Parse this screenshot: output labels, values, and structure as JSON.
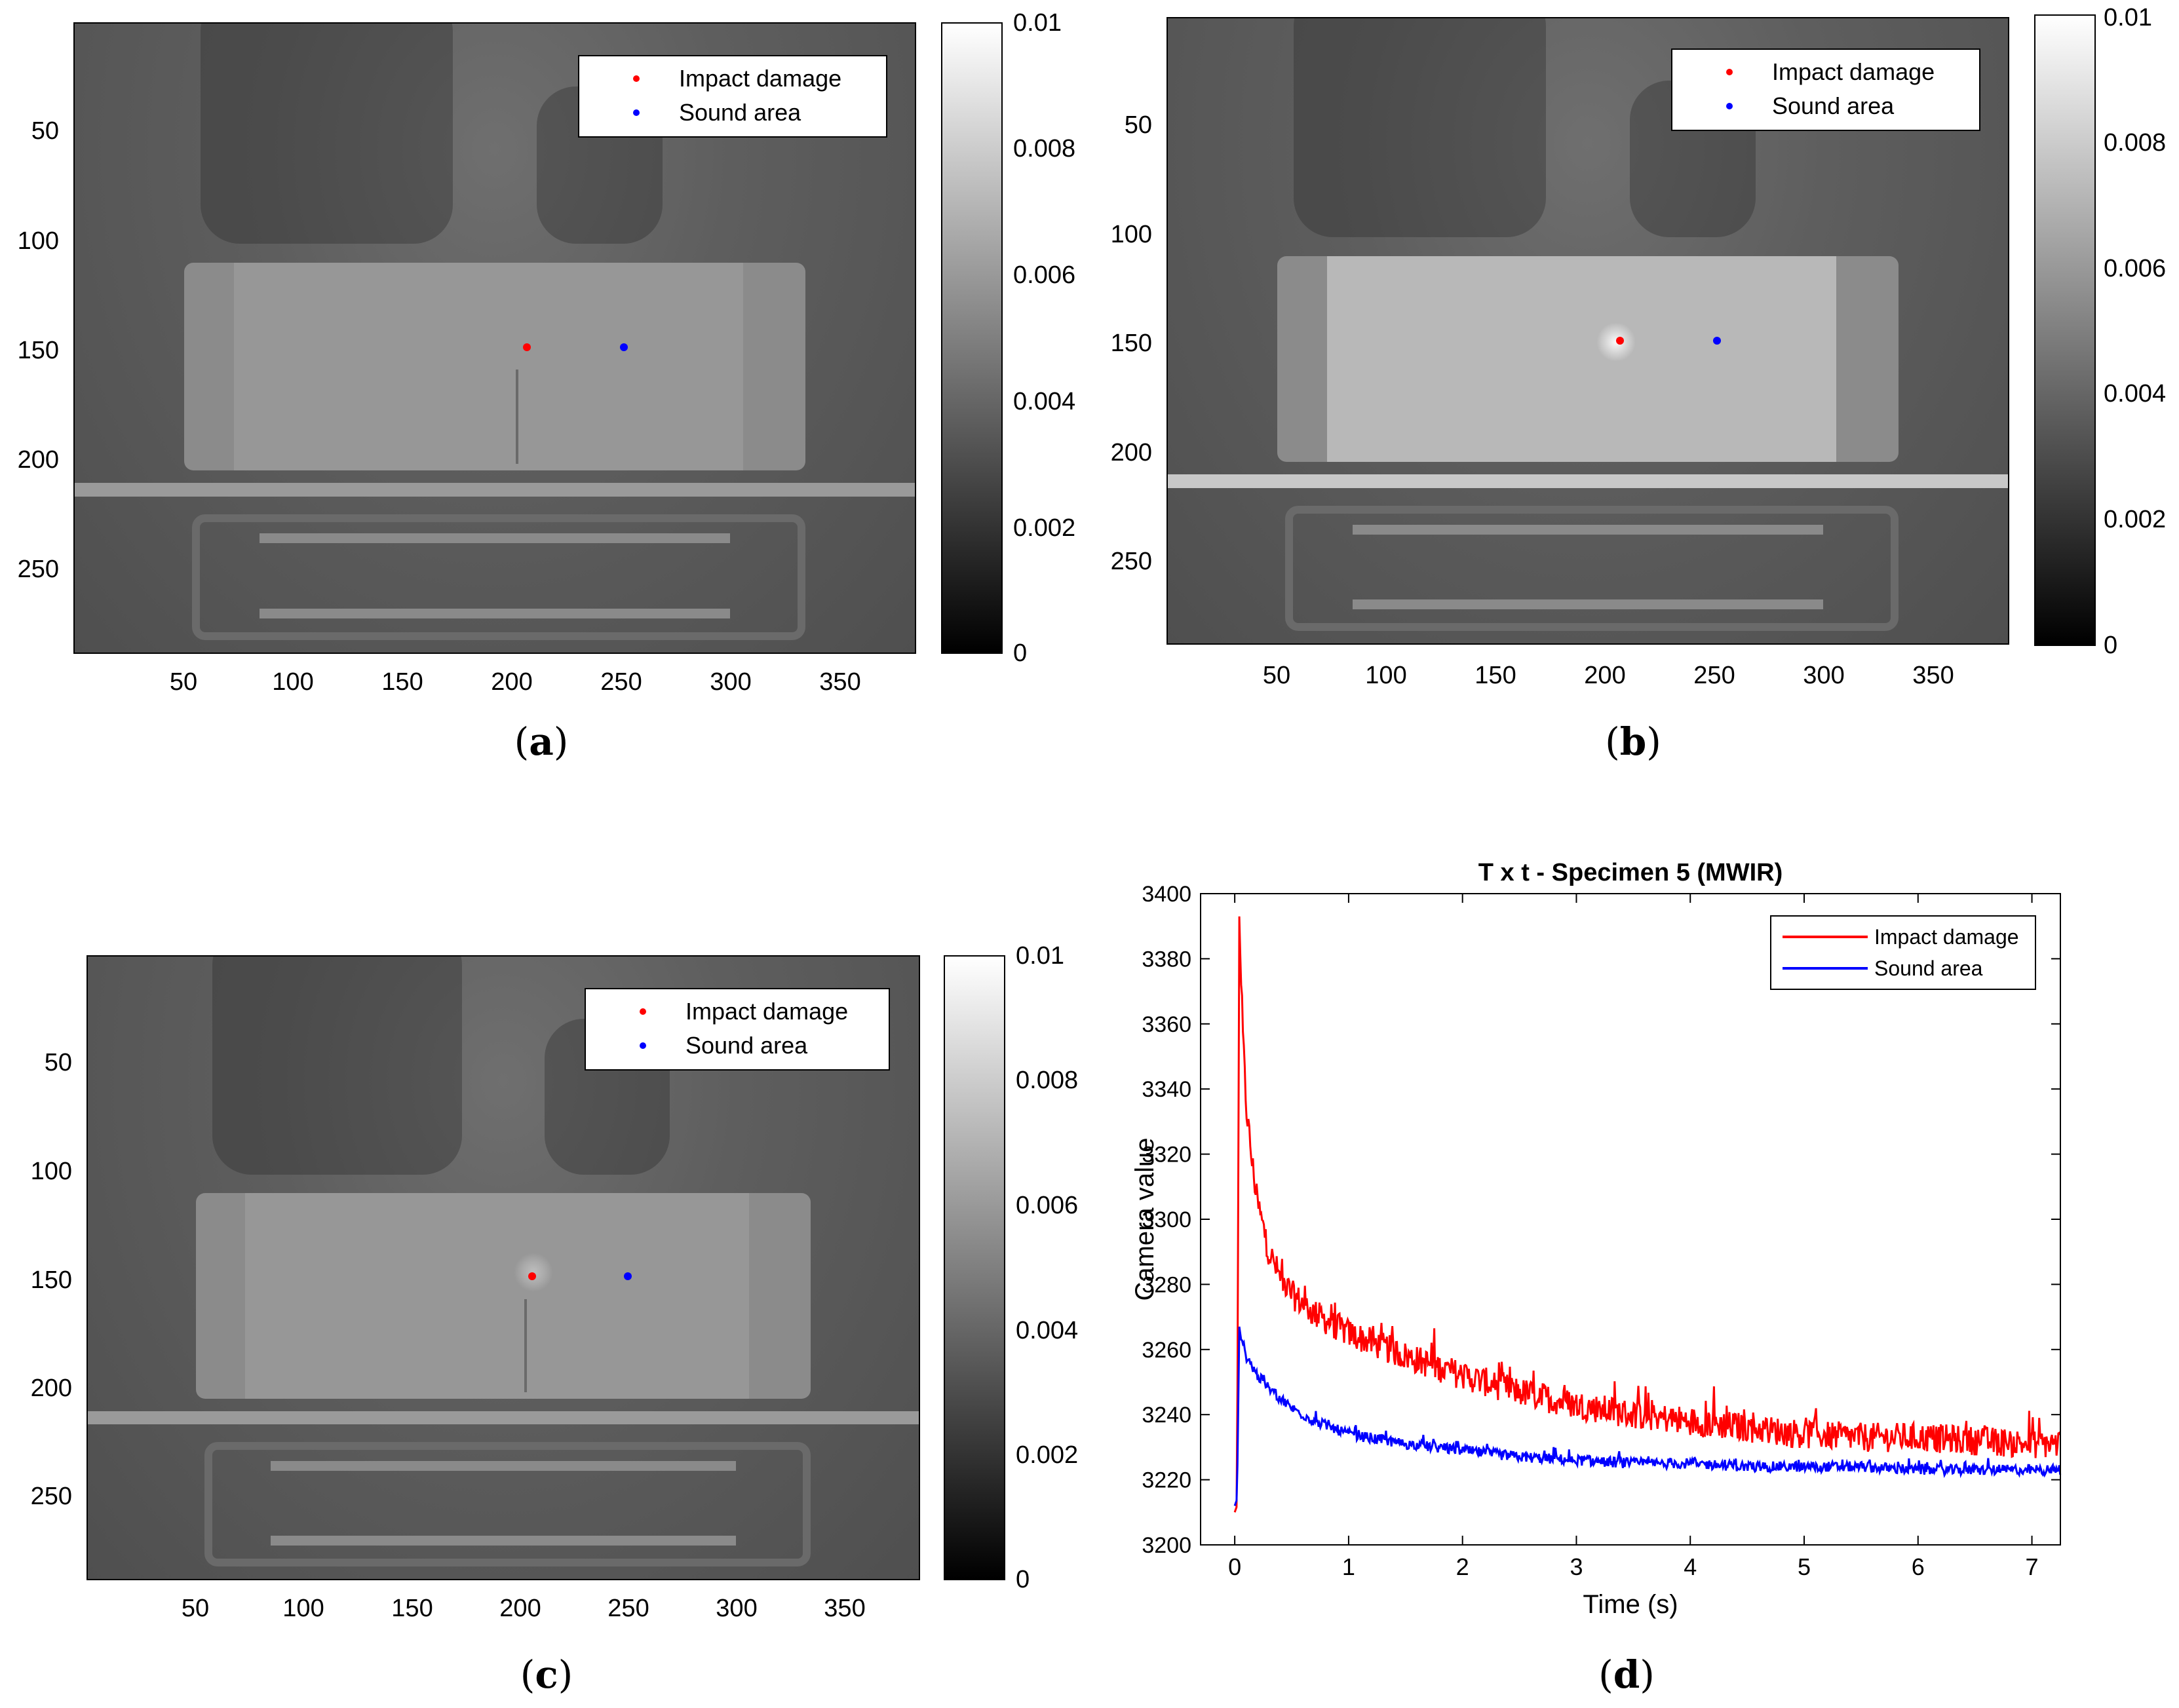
{
  "panels": {
    "a": {
      "caption_open": "(",
      "caption_letter": "a",
      "caption_close": ")",
      "y_ticks": [
        "50",
        "100",
        "150",
        "200",
        "250"
      ],
      "x_ticks": [
        "50",
        "100",
        "150",
        "200",
        "250",
        "300",
        "350"
      ],
      "colorbar_ticks": [
        "0.01",
        "0.008",
        "0.006",
        "0.004",
        "0.002",
        "0"
      ],
      "legend": [
        {
          "label": "Impact damage",
          "color": "#ff0000"
        },
        {
          "label": "Sound area",
          "color": "#0000ff"
        }
      ]
    },
    "b": {
      "caption_open": "(",
      "caption_letter": "b",
      "caption_close": ")",
      "y_ticks": [
        "50",
        "100",
        "150",
        "200",
        "250"
      ],
      "x_ticks": [
        "50",
        "100",
        "150",
        "200",
        "250",
        "300",
        "350"
      ],
      "colorbar_ticks": [
        "0.01",
        "0.008",
        "0.006",
        "0.004",
        "0.002",
        "0"
      ],
      "legend": [
        {
          "label": "Impact damage",
          "color": "#ff0000"
        },
        {
          "label": "Sound area",
          "color": "#0000ff"
        }
      ]
    },
    "c": {
      "caption_open": "(",
      "caption_letter": "c",
      "caption_close": ")",
      "y_ticks": [
        "50",
        "100",
        "150",
        "200",
        "250"
      ],
      "x_ticks": [
        "50",
        "100",
        "150",
        "200",
        "250",
        "300",
        "350"
      ],
      "colorbar_ticks": [
        "0.01",
        "0.008",
        "0.006",
        "0.004",
        "0.002",
        "0"
      ],
      "legend": [
        {
          "label": "Impact damage",
          "color": "#ff0000"
        },
        {
          "label": "Sound area",
          "color": "#0000ff"
        }
      ]
    },
    "d": {
      "caption_open": "(",
      "caption_letter": "d",
      "caption_close": ")"
    }
  },
  "chart_data": [
    {
      "type": "heatmap",
      "panel": "a",
      "title": "",
      "x_range": [
        1,
        384
      ],
      "y_range": [
        1,
        288
      ],
      "color_range": [
        0,
        0.01
      ],
      "points": [
        {
          "name": "Impact damage",
          "x": 206,
          "y": 149
        },
        {
          "name": "Sound area",
          "x": 250,
          "y": 149
        }
      ]
    },
    {
      "type": "heatmap",
      "panel": "b",
      "title": "",
      "x_range": [
        1,
        384
      ],
      "y_range": [
        1,
        288
      ],
      "color_range": [
        0,
        0.01
      ],
      "points": [
        {
          "name": "Impact damage",
          "x": 206,
          "y": 149
        },
        {
          "name": "Sound area",
          "x": 250,
          "y": 149
        }
      ]
    },
    {
      "type": "heatmap",
      "panel": "c",
      "title": "",
      "x_range": [
        1,
        384
      ],
      "y_range": [
        1,
        288
      ],
      "color_range": [
        0,
        0.01
      ],
      "points": [
        {
          "name": "Impact damage",
          "x": 206,
          "y": 149
        },
        {
          "name": "Sound area",
          "x": 250,
          "y": 149
        }
      ]
    },
    {
      "type": "line",
      "panel": "d",
      "title": "T x t - Specimen 5 (MWIR)",
      "xlabel": "Time (s)",
      "ylabel": "Camera value",
      "xlim": [
        -0.3,
        7.25
      ],
      "ylim": [
        3200,
        3400
      ],
      "x_ticks": [
        0,
        1,
        2,
        3,
        4,
        5,
        6,
        7
      ],
      "y_ticks": [
        3200,
        3220,
        3240,
        3260,
        3280,
        3300,
        3320,
        3340,
        3360,
        3380,
        3400
      ],
      "x_tick_labels": [
        "0",
        "1",
        "2",
        "3",
        "4",
        "5",
        "6",
        "7"
      ],
      "y_tick_labels": [
        "3200",
        "3220",
        "3240",
        "3260",
        "3280",
        "3300",
        "3320",
        "3340",
        "3360",
        "3380",
        "3400"
      ],
      "legend_position": "top-right",
      "series": [
        {
          "name": "Impact damage",
          "color": "#ff0000",
          "x": [
            0.0,
            0.02,
            0.04,
            0.06,
            0.1,
            0.15,
            0.2,
            0.3,
            0.4,
            0.5,
            0.7,
            1.0,
            1.5,
            2.0,
            2.5,
            3.0,
            3.5,
            4.0,
            4.5,
            5.0,
            5.5,
            6.0,
            6.5,
            7.0,
            7.25
          ],
          "values": [
            3210,
            3212,
            3393,
            3365,
            3335,
            3318,
            3305,
            3290,
            3282,
            3277,
            3271,
            3265,
            3258,
            3252,
            3247,
            3243,
            3240,
            3238,
            3236,
            3234,
            3233,
            3233,
            3232,
            3231,
            3231
          ]
        },
        {
          "name": "Sound area",
          "color": "#0000ff",
          "x": [
            0.0,
            0.02,
            0.04,
            0.06,
            0.1,
            0.15,
            0.2,
            0.3,
            0.4,
            0.5,
            0.7,
            1.0,
            1.5,
            2.0,
            2.5,
            3.0,
            3.5,
            4.0,
            4.5,
            5.0,
            5.5,
            6.0,
            6.5,
            7.0,
            7.25
          ],
          "values": [
            3212,
            3214,
            3267,
            3262,
            3258,
            3255,
            3252,
            3248,
            3245,
            3242,
            3238,
            3234,
            3231,
            3229,
            3227,
            3226,
            3225,
            3225,
            3224,
            3224,
            3224,
            3223,
            3223,
            3223,
            3223
          ]
        }
      ]
    }
  ]
}
